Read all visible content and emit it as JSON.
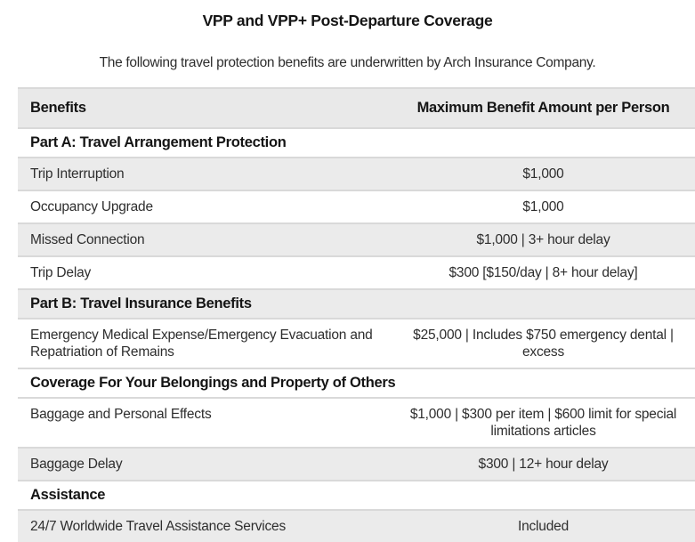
{
  "page": {
    "title": "VPP and VPP+ Post-Departure Coverage",
    "subtitle": "The following travel protection benefits are underwritten by Arch Insurance Company."
  },
  "colors": {
    "stripe": "#ebebeb",
    "header_bg": "#e9e9e9",
    "border": "#d9d9d9",
    "text": "#2e2e2e",
    "heading_text": "#151515"
  },
  "table": {
    "columns": [
      {
        "label": "Benefits",
        "align": "left"
      },
      {
        "label": "Maximum Benefit Amount per Person",
        "align": "center"
      }
    ],
    "rows": [
      {
        "type": "section",
        "label": "Part A: Travel Arrangement Protection",
        "shaded": false
      },
      {
        "type": "data",
        "benefit": "Trip Interruption",
        "amount": "$1,000",
        "shaded": true
      },
      {
        "type": "data",
        "benefit": "Occupancy Upgrade",
        "amount": "$1,000",
        "shaded": false
      },
      {
        "type": "data",
        "benefit": "Missed Connection",
        "amount": "$1,000 | 3+ hour delay",
        "shaded": true
      },
      {
        "type": "data",
        "benefit": "Trip Delay",
        "amount": "$300 [$150/day | 8+ hour delay]",
        "shaded": false
      },
      {
        "type": "section",
        "label": "Part B: Travel Insurance Benefits",
        "shaded": true
      },
      {
        "type": "data",
        "benefit": "Emergency Medical Expense/Emergency Evacuation and Repatriation of Remains",
        "amount": "$25,000 | Includes $750 emergency dental | excess",
        "shaded": false
      },
      {
        "type": "section",
        "label": "Coverage For Your Belongings and Property of Others",
        "shaded": false
      },
      {
        "type": "data",
        "benefit": "Baggage and Personal Effects",
        "amount": "$1,000 | $300 per item | $600 limit for special limitations articles",
        "shaded": false
      },
      {
        "type": "data",
        "benefit": "Baggage Delay",
        "amount": "$300 | 12+ hour delay",
        "shaded": true
      },
      {
        "type": "section",
        "label": "Assistance",
        "shaded": false
      },
      {
        "type": "data",
        "benefit": "24/7 Worldwide Travel Assistance Services",
        "amount": "Included",
        "shaded": true
      }
    ]
  }
}
